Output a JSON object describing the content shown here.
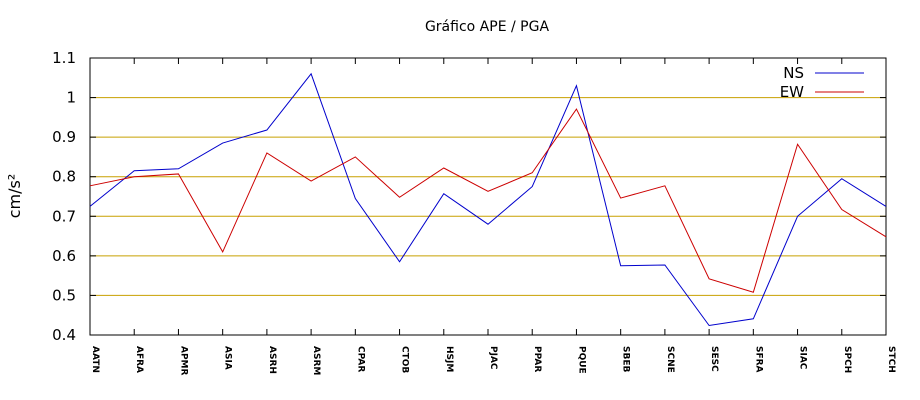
{
  "chart_data": {
    "type": "line",
    "title": "Gráfico  APE / PGA",
    "ylabel": "cm/s²",
    "xlabel": "",
    "ylim": [
      0.4,
      1.1
    ],
    "yticks": [
      0.4,
      0.5,
      0.6,
      0.7,
      0.8,
      0.9,
      1,
      1.1
    ],
    "ytick_labels": [
      "0.4",
      "0.5",
      "0.6",
      "0.7",
      "0.8",
      "0.9",
      "1",
      "1.1"
    ],
    "grid": true,
    "legend_position": "top-right",
    "categories": [
      "AATN",
      "AFRA",
      "APMR",
      "ASIA",
      "ASRH",
      "ASRM",
      "CPAR",
      "CTOB",
      "HSJM",
      "PJAC",
      "PPAR",
      "PQUE",
      "SBEB",
      "SCNE",
      "SESC",
      "SFRA",
      "SIAC",
      "SPCH",
      "STCH"
    ],
    "series": [
      {
        "name": "NS",
        "color": "#0000cc",
        "values": [
          0.725,
          0.815,
          0.82,
          0.885,
          0.918,
          1.06,
          0.745,
          0.585,
          0.757,
          0.68,
          0.775,
          1.03,
          0.575,
          0.577,
          0.424,
          0.441,
          0.7,
          0.795,
          0.725
        ]
      },
      {
        "name": "EW",
        "color": "#cc0000",
        "values": [
          0.777,
          0.8,
          0.807,
          0.61,
          0.86,
          0.789,
          0.85,
          0.748,
          0.822,
          0.763,
          0.81,
          0.971,
          0.746,
          0.777,
          0.542,
          0.508,
          0.882,
          0.717,
          0.648
        ]
      }
    ],
    "colors": {
      "grid": "#c8a000",
      "axis": "#000000"
    }
  }
}
